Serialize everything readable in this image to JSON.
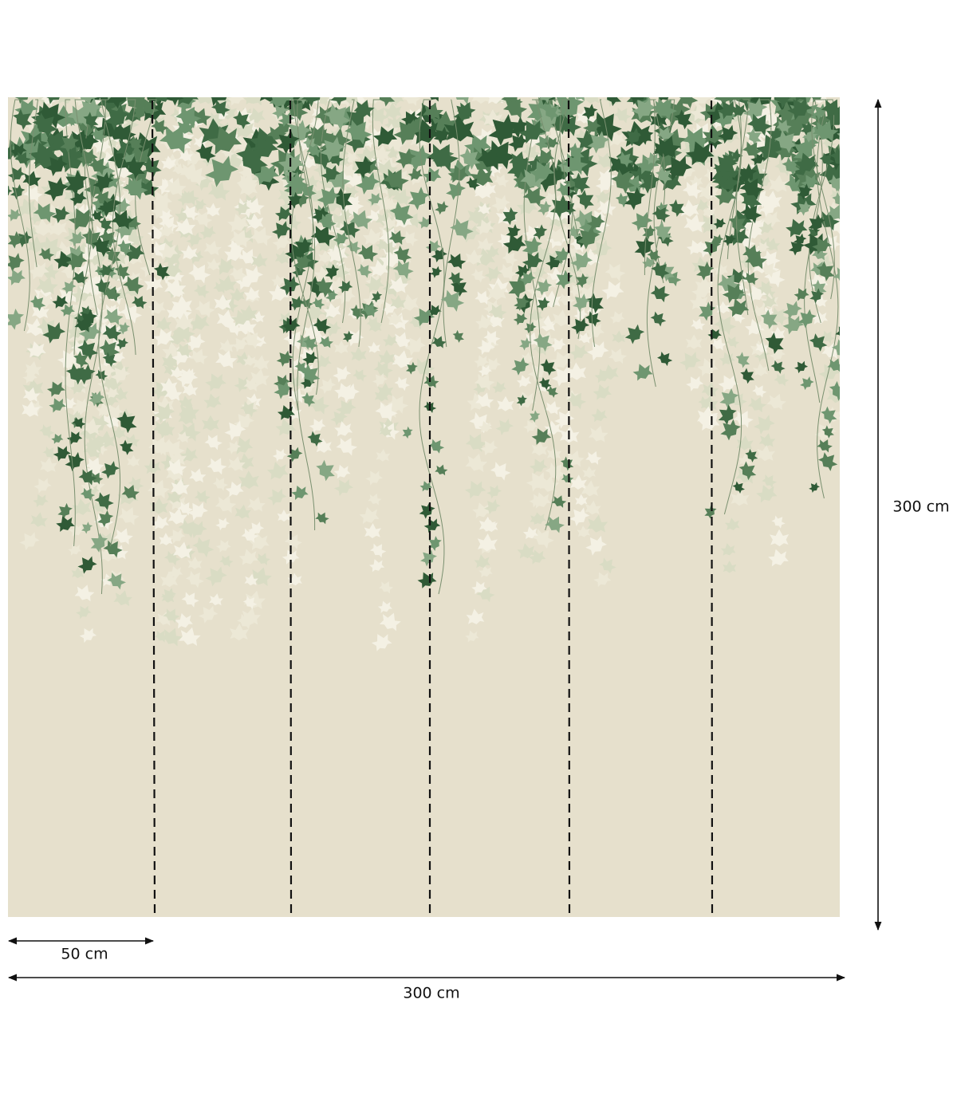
{
  "dimensions": {
    "height": "300 cm",
    "panel_width": "50 cm",
    "total_width": "300 cm"
  }
}
